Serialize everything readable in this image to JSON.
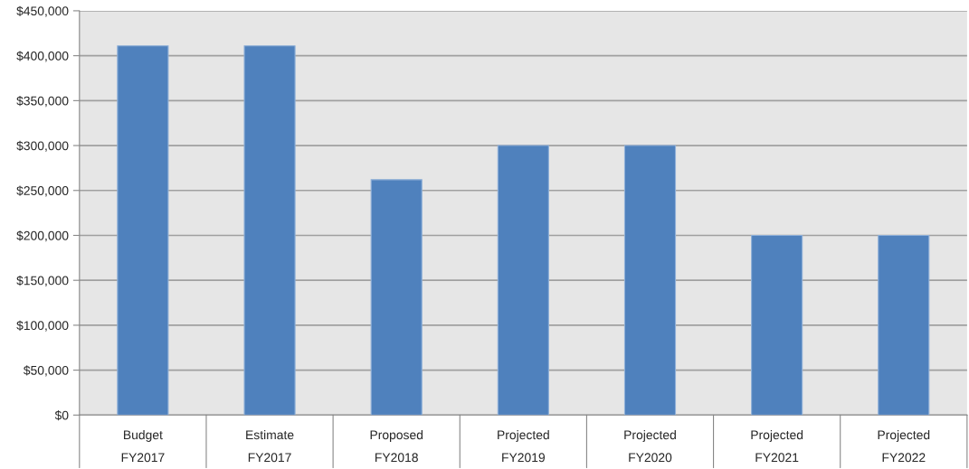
{
  "chart_data": {
    "type": "bar",
    "categories": [
      "Budget\nFY2017",
      "Estimate\nFY2017",
      "Proposed\nFY2018",
      "Projected\nFY2019",
      "Projected\nFY2020",
      "Projected\nFY2021",
      "Projected\nFY2022"
    ],
    "values": [
      411000,
      411000,
      262000,
      300000,
      300000,
      200000,
      200000
    ],
    "colors": [
      "#4f81bd",
      "#4f81bd",
      "#4f81bd",
      "#4f81bd",
      "#4f81bd",
      "#4f81bd",
      "#4f81bd"
    ],
    "ylim": [
      0,
      450000
    ],
    "yticks": [
      {
        "value": 0,
        "label": "$0"
      },
      {
        "value": 50000,
        "label": "$50,000"
      },
      {
        "value": 100000,
        "label": "$100,000"
      },
      {
        "value": 150000,
        "label": "$150,000"
      },
      {
        "value": 200000,
        "label": "$200,000"
      },
      {
        "value": 250000,
        "label": "$250,000"
      },
      {
        "value": 300000,
        "label": "$300,000"
      },
      {
        "value": 350000,
        "label": "$350,000"
      },
      {
        "value": 400000,
        "label": "$400,000"
      },
      {
        "value": 450000,
        "label": "$450,000"
      }
    ],
    "grid": "y",
    "legend": false
  }
}
